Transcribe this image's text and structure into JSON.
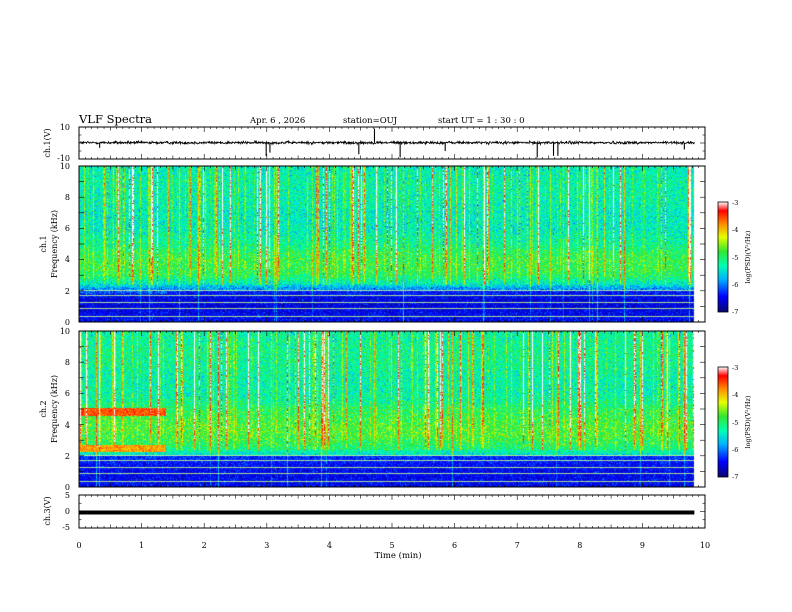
{
  "header": {
    "title": "VLF Spectra",
    "date": "Apr. 6  , 2026",
    "station": "station=OUJ",
    "start": "start  UT =   1 : 30 : 0"
  },
  "colors": {
    "colormap": [
      "#08086e",
      "#0000ff",
      "#00b4ff",
      "#00ffb4",
      "#32e632",
      "#e6ff00",
      "#ff8c00",
      "#ff0000",
      "#ffffff"
    ]
  },
  "chart_data": [
    {
      "type": "line",
      "panel": "ch1-waveform",
      "ylabel": "ch.1(V)",
      "ylim": [
        -10,
        10
      ],
      "yticks": [
        "10",
        "-10"
      ],
      "xlim": [
        0,
        10
      ],
      "baseline": 0.2,
      "noise_amplitude": 1.5,
      "spikes": [
        {
          "t": 0.33,
          "v": -3
        },
        {
          "t": 2.99,
          "v": -8
        },
        {
          "t": 3.05,
          "v": -6
        },
        {
          "t": 4.47,
          "v": -7
        },
        {
          "t": 4.72,
          "v": 9
        },
        {
          "t": 5.13,
          "v": -9
        },
        {
          "t": 5.85,
          "v": -5
        },
        {
          "t": 7.32,
          "v": -9
        },
        {
          "t": 7.58,
          "v": -8
        },
        {
          "t": 7.65,
          "v": -8
        },
        {
          "t": 9.67,
          "v": -4
        }
      ]
    },
    {
      "type": "heatmap",
      "panel": "ch1-spectrogram",
      "ylabel": "ch.1",
      "ylabel2": "Frequency (kHz)",
      "xlim": [
        0,
        10
      ],
      "ylim": [
        0,
        10
      ],
      "yticks": [
        "0",
        "2",
        "4",
        "6",
        "8",
        "10"
      ],
      "colorbar": {
        "label": "log(PSD)(V²/Hz)",
        "ticks": [
          "-3",
          "-4",
          "-5",
          "-6",
          "-7"
        ],
        "range": [
          -7,
          -3
        ]
      },
      "data_end_min": 9.83,
      "profile_khz": [
        0,
        0.5,
        1,
        1.5,
        2,
        2.5,
        3,
        3.5,
        4,
        4.5,
        5,
        5.5,
        6,
        7,
        8,
        9,
        10
      ],
      "profile_logpsd": [
        -6.3,
        -6.4,
        -6.5,
        -6.5,
        -6.1,
        -5.4,
        -5.0,
        -4.9,
        -4.9,
        -5.0,
        -5.2,
        -5.3,
        -5.4,
        -5.4,
        -5.3,
        -5.3,
        -5.4
      ],
      "lines_khz": [
        0.4,
        0.9,
        1.3,
        1.7,
        2.05
      ],
      "band_shift": {
        "until_min": 1.4,
        "edge_khz": 2.05,
        "early_edge_khz": 1.85
      }
    },
    {
      "type": "heatmap",
      "panel": "ch2-spectrogram",
      "ylabel": "ch.2",
      "ylabel2": "Frequency (kHz)",
      "xlim": [
        0,
        10
      ],
      "ylim": [
        0,
        10
      ],
      "yticks": [
        "0",
        "2",
        "4",
        "6",
        "8",
        "10"
      ],
      "colorbar": {
        "label": "log(PSD)(V²/Hz)",
        "ticks": [
          "-3",
          "-4",
          "-5",
          "-6",
          "-7"
        ],
        "range": [
          -7,
          -3
        ]
      },
      "data_end_min": 9.83,
      "profile_khz": [
        0,
        0.5,
        1,
        1.5,
        2,
        2.5,
        3,
        3.5,
        4,
        4.5,
        5,
        5.5,
        6,
        7,
        8,
        9,
        10
      ],
      "profile_logpsd": [
        -6.3,
        -6.4,
        -6.4,
        -6.3,
        -5.6,
        -5.1,
        -4.9,
        -4.8,
        -4.8,
        -4.9,
        -5.0,
        -5.2,
        -5.3,
        -5.3,
        -5.2,
        -5.2,
        -5.3
      ],
      "lines_khz": [
        0.4,
        0.9,
        1.3,
        1.7,
        2.05
      ],
      "early_bands": [
        {
          "until_min": 1.38,
          "from_khz": 4.6,
          "to_khz": 5.1,
          "logpsd": -3.6
        },
        {
          "until_min": 1.38,
          "from_khz": 2.3,
          "to_khz": 2.7,
          "logpsd": -3.9
        }
      ]
    },
    {
      "type": "line",
      "panel": "ch3-waveform",
      "ylabel": "ch.3(V)",
      "ylim": [
        -5,
        5
      ],
      "yticks": [
        "5",
        "0",
        "-5"
      ],
      "xlim": [
        0,
        10
      ],
      "level": -0.3,
      "data_end_min": 9.83
    }
  ],
  "xaxis": {
    "label": "Time  (min)",
    "ticks": [
      "0",
      "1",
      "2",
      "3",
      "4",
      "5",
      "6",
      "7",
      "8",
      "9",
      "10"
    ]
  }
}
